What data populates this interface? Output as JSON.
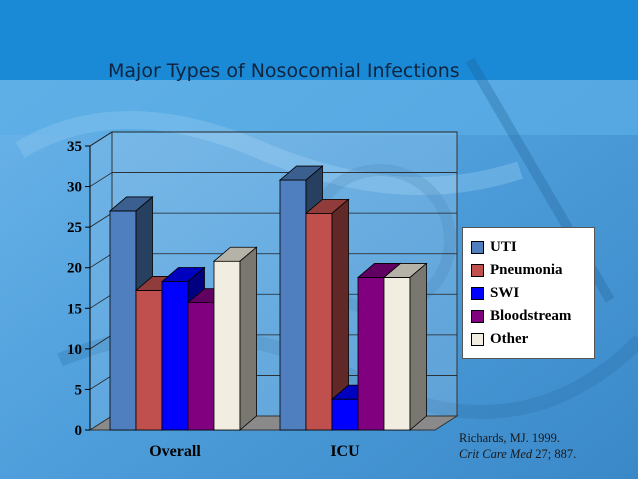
{
  "title": "Major Types of Nosocomial Infections",
  "source": {
    "line1": "Richards, MJ. 1999.",
    "journal": "Crit Care Med",
    "rest": " 27; 887."
  },
  "chart_data": {
    "type": "bar",
    "title": "Major Types of Nosocomial Infections",
    "categories": [
      "Overall",
      "ICU"
    ],
    "series": [
      {
        "name": "UTI",
        "color": "#4f7fbf",
        "values": [
          27,
          30.8
        ]
      },
      {
        "name": "Pneumonia",
        "color": "#c0504d",
        "values": [
          17.2,
          26.7
        ]
      },
      {
        "name": "SWI",
        "color": "#0000ff",
        "values": [
          18.3,
          3.8
        ]
      },
      {
        "name": "Bloodstream",
        "color": "#800080",
        "values": [
          15.7,
          18.8
        ]
      },
      {
        "name": "Other",
        "color": "#f1ede0",
        "values": [
          20.8,
          18.8
        ]
      }
    ],
    "yticks": [
      "0",
      "5",
      "10",
      "15",
      "20",
      "25",
      "30",
      "35"
    ],
    "ylim": [
      0,
      35
    ],
    "grid": true,
    "legend_position": "right",
    "xlabel": "",
    "ylabel": ""
  }
}
